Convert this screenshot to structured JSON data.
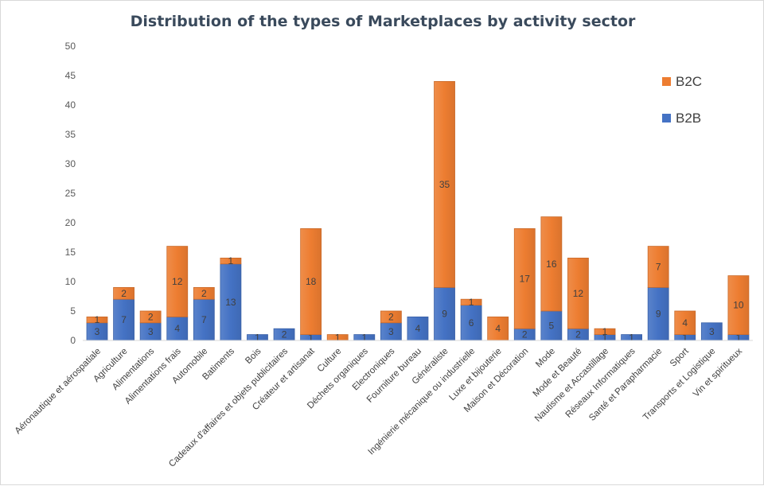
{
  "chart_data": {
    "type": "bar",
    "stacked": true,
    "title": "Distribution of the types of Marketplaces by activity sector",
    "xlabel": "",
    "ylabel": "",
    "ylim": [
      0,
      50
    ],
    "yticks": [
      0,
      5,
      10,
      15,
      20,
      25,
      30,
      35,
      40,
      45,
      50
    ],
    "grid": false,
    "legend_position": "top-right",
    "categories": [
      "Aéronautique et aérospatiale",
      "Agriculture",
      "Alimentations",
      "Alimentations frais",
      "Automobile",
      "Batiments",
      "Bois",
      "Cadeaux d'affaires et objets publicitaires",
      "Créateur et artisanat",
      "Culture",
      "Déchets organiques",
      "Electroniques",
      "Fourniture bureau",
      "Généraliste",
      "Ingénierie mécanique ou industrielle",
      "Luxe et bijouterie",
      "Maison et Décoration",
      "Mode",
      "Mode et Beauté",
      "Nautisme et Accastillage",
      "Réseaux Informatiques",
      "Santé et Parapharmacie",
      "Sport",
      "Transports et Logistique",
      "Vin et spiritueux"
    ],
    "series": [
      {
        "name": "B2B",
        "color": "#4472c4",
        "values": [
          3,
          7,
          3,
          4,
          7,
          13,
          1,
          2,
          1,
          0,
          1,
          3,
          4,
          9,
          6,
          0,
          2,
          5,
          2,
          1,
          1,
          9,
          1,
          3,
          1
        ]
      },
      {
        "name": "B2C",
        "color": "#ed7d31",
        "values": [
          1,
          2,
          2,
          12,
          2,
          1,
          0,
          0,
          18,
          1,
          0,
          2,
          0,
          35,
          1,
          4,
          17,
          16,
          12,
          1,
          0,
          7,
          4,
          0,
          10
        ]
      }
    ],
    "legend": [
      "B2C",
      "B2B"
    ]
  }
}
